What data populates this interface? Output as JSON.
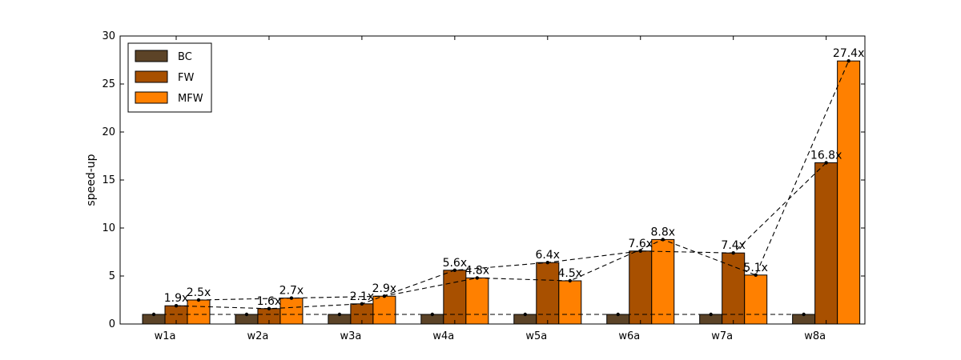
{
  "chart_data": {
    "type": "bar",
    "title": "",
    "xlabel": "",
    "ylabel": "speed-up",
    "categories": [
      "w1a",
      "w2a",
      "w3a",
      "w4a",
      "w5a",
      "w6a",
      "w7a",
      "w8a"
    ],
    "ylim": [
      0,
      30
    ],
    "yticks": [
      0,
      5,
      10,
      15,
      20,
      25,
      30
    ],
    "grid": false,
    "legend_position": "top-left",
    "series": [
      {
        "name": "BC",
        "color": "#5c4327",
        "values": [
          1,
          1,
          1,
          1,
          1,
          1,
          1,
          1
        ]
      },
      {
        "name": "FW",
        "color": "#a85000",
        "values": [
          1.9,
          1.6,
          2.1,
          5.6,
          6.4,
          7.6,
          7.4,
          16.8
        ],
        "labels": [
          "1.9x",
          "1.6x",
          "2.1x",
          "5.6x",
          "6.4x",
          "7.6x",
          "7.4x",
          "16.8x"
        ]
      },
      {
        "name": "MFW",
        "color": "#ff8000",
        "values": [
          2.5,
          2.7,
          2.9,
          4.8,
          4.5,
          8.8,
          5.1,
          27.4
        ],
        "labels": [
          "2.5x",
          "2.7x",
          "2.9x",
          "4.8x",
          "4.5x",
          "8.8x",
          "5.1x",
          "27.4x"
        ]
      }
    ],
    "connector_lines": "dashed"
  }
}
